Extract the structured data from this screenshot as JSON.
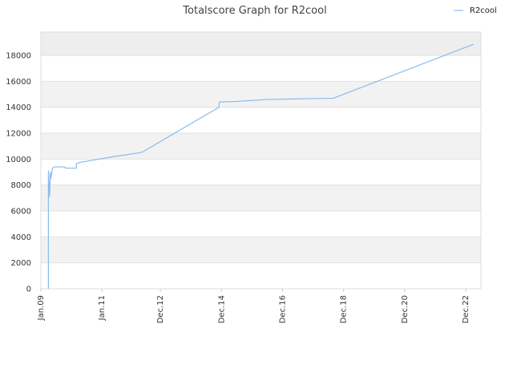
{
  "chart_data": {
    "type": "line",
    "title": "Totalscore Graph for R2cool",
    "legend": {
      "position": "top-right",
      "entries": [
        "R2cool"
      ]
    },
    "grid": true,
    "xlabel": "",
    "ylabel": "",
    "ylim": [
      0,
      19800
    ],
    "xlim": [
      "2009-01-01",
      "2023-06-01"
    ],
    "y_ticks": [
      0,
      2000,
      4000,
      6000,
      8000,
      10000,
      12000,
      14000,
      16000,
      18000
    ],
    "x_ticks": [
      {
        "label": "Jan.09",
        "date": "2009-01-01"
      },
      {
        "label": "Jan.11",
        "date": "2011-01-01"
      },
      {
        "label": "Dec.12",
        "date": "2012-12-01"
      },
      {
        "label": "Dec.14",
        "date": "2014-12-01"
      },
      {
        "label": "Dec.16",
        "date": "2016-12-01"
      },
      {
        "label": "Dec.18",
        "date": "2018-12-01"
      },
      {
        "label": "Dec.20",
        "date": "2020-12-01"
      },
      {
        "label": "Dec.22",
        "date": "2022-12-01"
      }
    ],
    "series": [
      {
        "name": "R2cool",
        "color": "#88bbee",
        "points": [
          [
            "2009-04-01",
            0
          ],
          [
            "2009-04-01",
            9100
          ],
          [
            "2009-04-15",
            7100
          ],
          [
            "2009-04-25",
            9000
          ],
          [
            "2009-05-01",
            8500
          ],
          [
            "2009-05-20",
            9300
          ],
          [
            "2009-06-10",
            9400
          ],
          [
            "2009-10-01",
            9400
          ],
          [
            "2009-11-01",
            9300
          ],
          [
            "2010-03-01",
            9300
          ],
          [
            "2010-03-01",
            9650
          ],
          [
            "2010-04-15",
            9750
          ],
          [
            "2011-06-01",
            10200
          ],
          [
            "2012-04-01",
            10500
          ],
          [
            "2012-05-01",
            10550
          ],
          [
            "2014-11-01",
            14000
          ],
          [
            "2014-11-05",
            14400
          ],
          [
            "2015-06-01",
            14450
          ],
          [
            "2016-06-01",
            14600
          ],
          [
            "2017-06-01",
            14650
          ],
          [
            "2018-08-01",
            14700
          ],
          [
            "2023-03-01",
            18850
          ]
        ]
      }
    ]
  }
}
